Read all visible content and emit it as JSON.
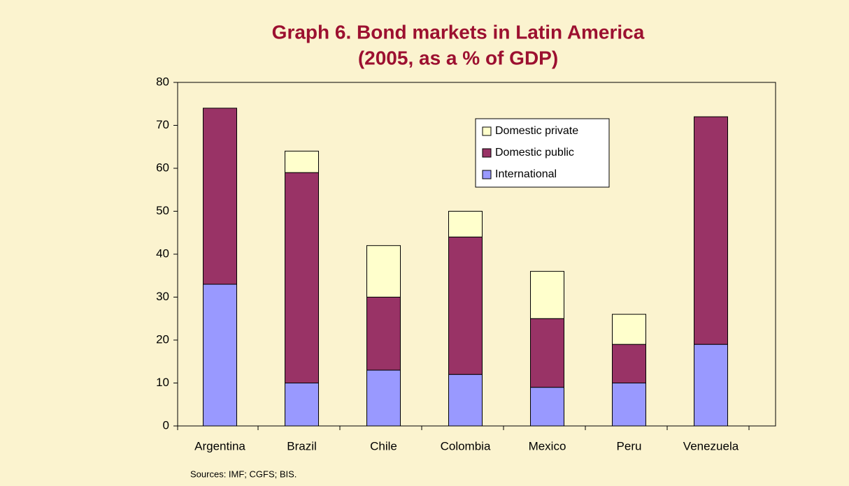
{
  "chart_data": {
    "type": "stacked_bar",
    "title": "Graph 6. Bond markets in Latin America",
    "subtitle": "(2005, as a % of GDP)",
    "source": "Sources: IMF; CGFS; BIS.",
    "categories": [
      "Argentina",
      "Brazil",
      "Chile",
      "Colombia",
      "Mexico",
      "Peru",
      "Venezuela"
    ],
    "series": [
      {
        "name": "International",
        "color": "#9999ff",
        "values": [
          33,
          10,
          13,
          12,
          9,
          10,
          19
        ]
      },
      {
        "name": "Domestic public",
        "color": "#993366",
        "values": [
          41,
          49,
          17,
          32,
          16,
          9,
          53
        ]
      },
      {
        "name": "Domestic private",
        "color": "#ffffcc",
        "values": [
          0,
          5,
          12,
          6,
          11,
          7,
          0
        ]
      }
    ],
    "ylim": [
      0,
      80
    ],
    "yticks": [
      0,
      10,
      20,
      30,
      40,
      50,
      60,
      70,
      80
    ],
    "grid": false,
    "legend": "upper right"
  }
}
